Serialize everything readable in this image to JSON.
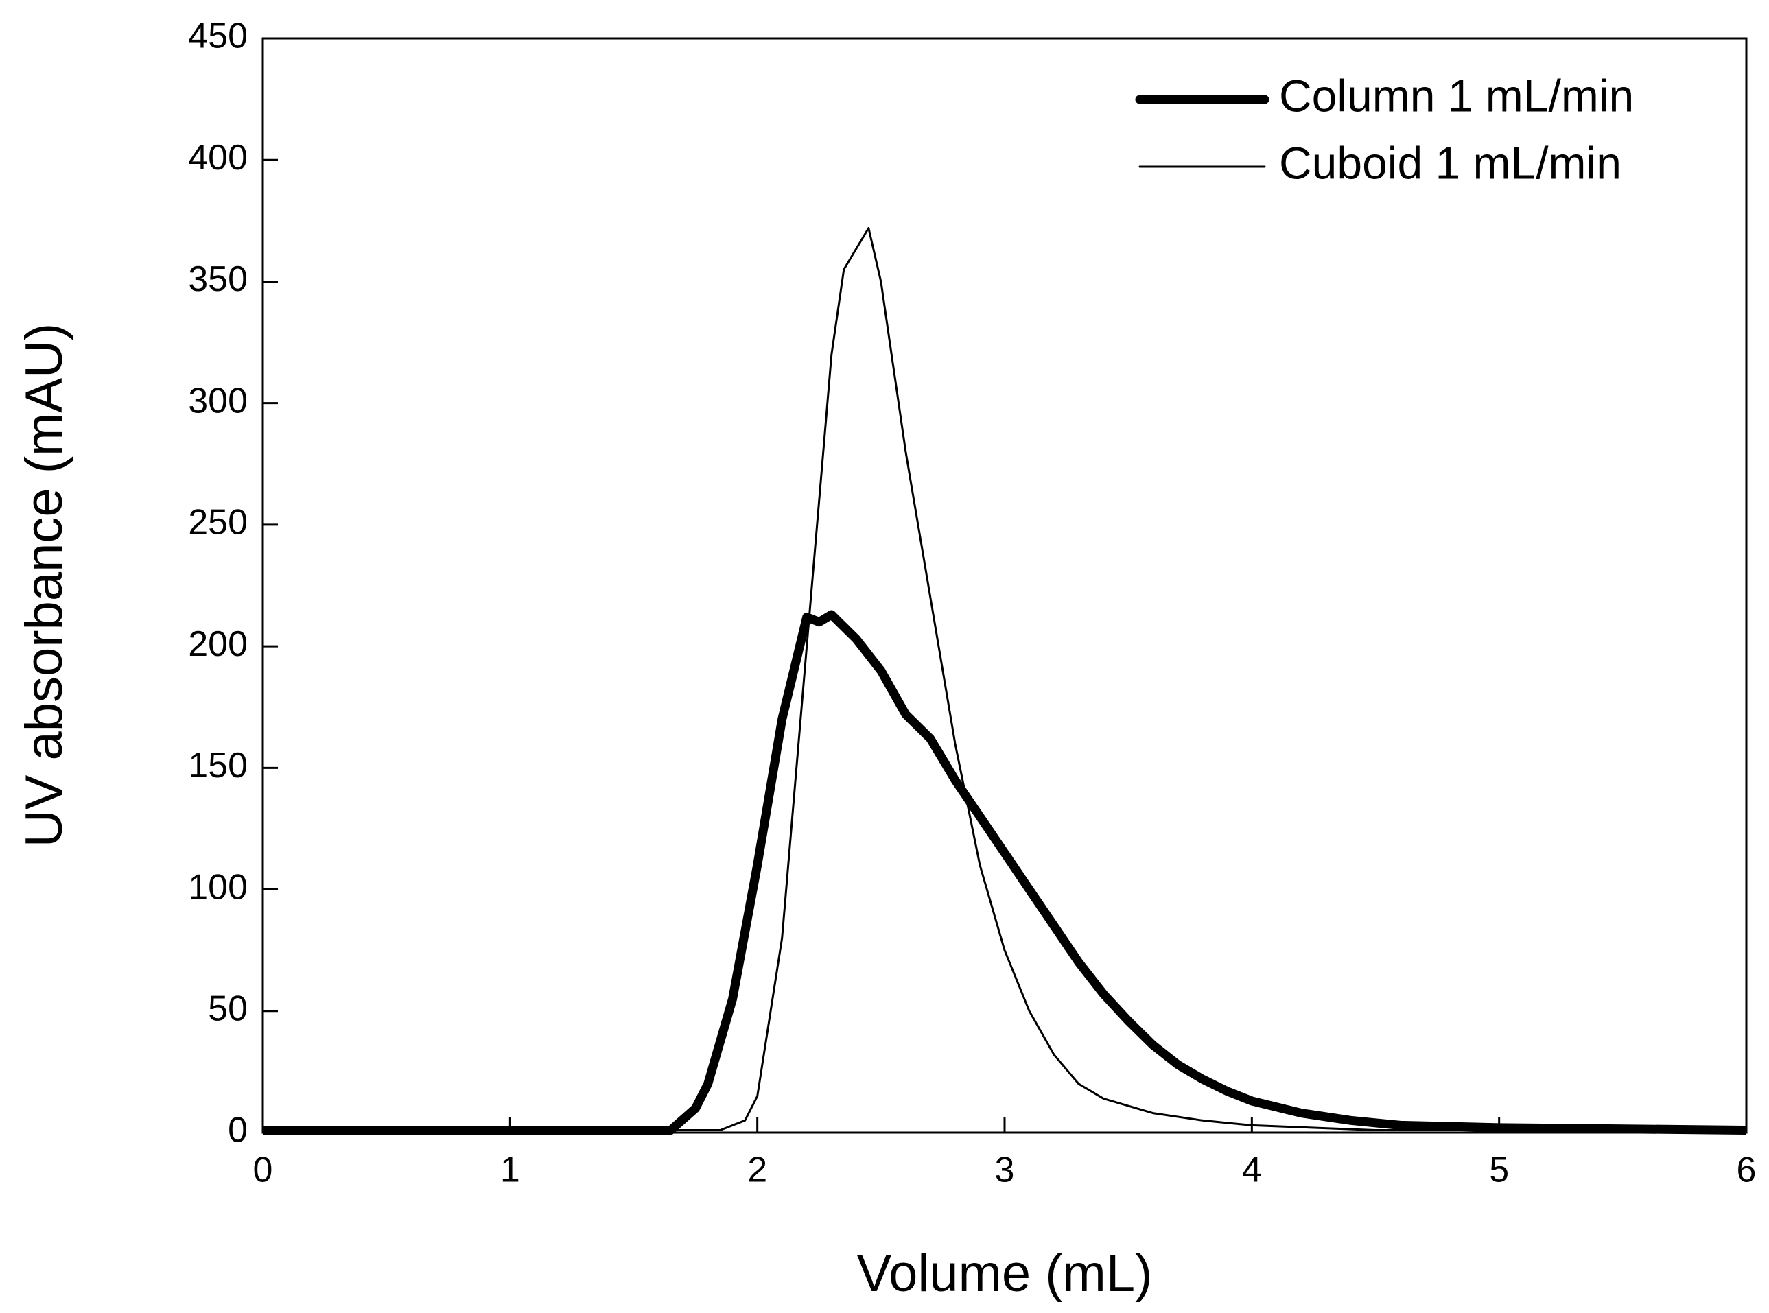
{
  "chart_data": {
    "type": "line",
    "xlabel": "Volume (mL)",
    "ylabel": "UV absorbance (mAU)",
    "xlim": [
      0,
      6
    ],
    "xticks": [
      0,
      1,
      2,
      3,
      4,
      5,
      6
    ],
    "ylim": [
      0,
      450
    ],
    "yticks": [
      0,
      50,
      100,
      150,
      200,
      250,
      300,
      350,
      400,
      450
    ],
    "legend": "upper right",
    "series": [
      {
        "name": "Column 1 mL/min",
        "color": "#000000",
        "width": "thick",
        "x": [
          0,
          1,
          1.65,
          1.75,
          1.8,
          1.9,
          2.0,
          2.1,
          2.2,
          2.25,
          2.3,
          2.4,
          2.5,
          2.6,
          2.7,
          2.8,
          2.9,
          3.0,
          3.1,
          3.2,
          3.3,
          3.4,
          3.5,
          3.6,
          3.7,
          3.8,
          3.9,
          4.0,
          4.2,
          4.4,
          4.6,
          5.0,
          6.0
        ],
        "values": [
          1,
          1,
          1,
          10,
          20,
          55,
          110,
          170,
          212,
          210,
          213,
          203,
          190,
          172,
          162,
          145,
          130,
          115,
          100,
          85,
          70,
          57,
          46,
          36,
          28,
          22,
          17,
          13,
          8,
          5,
          3,
          2,
          1
        ]
      },
      {
        "name": "Cuboid 1 mL/min",
        "color": "#000000",
        "width": "thin",
        "x": [
          0,
          1,
          1.85,
          1.95,
          2.0,
          2.1,
          2.2,
          2.3,
          2.35,
          2.45,
          2.5,
          2.6,
          2.7,
          2.8,
          2.9,
          3.0,
          3.1,
          3.2,
          3.3,
          3.4,
          3.6,
          3.8,
          4.0,
          4.5,
          5.0,
          6.0
        ],
        "values": [
          1,
          1,
          1,
          5,
          15,
          80,
          200,
          320,
          355,
          372,
          350,
          280,
          220,
          160,
          110,
          75,
          50,
          32,
          20,
          14,
          8,
          5,
          3,
          1,
          1,
          1
        ]
      }
    ]
  }
}
